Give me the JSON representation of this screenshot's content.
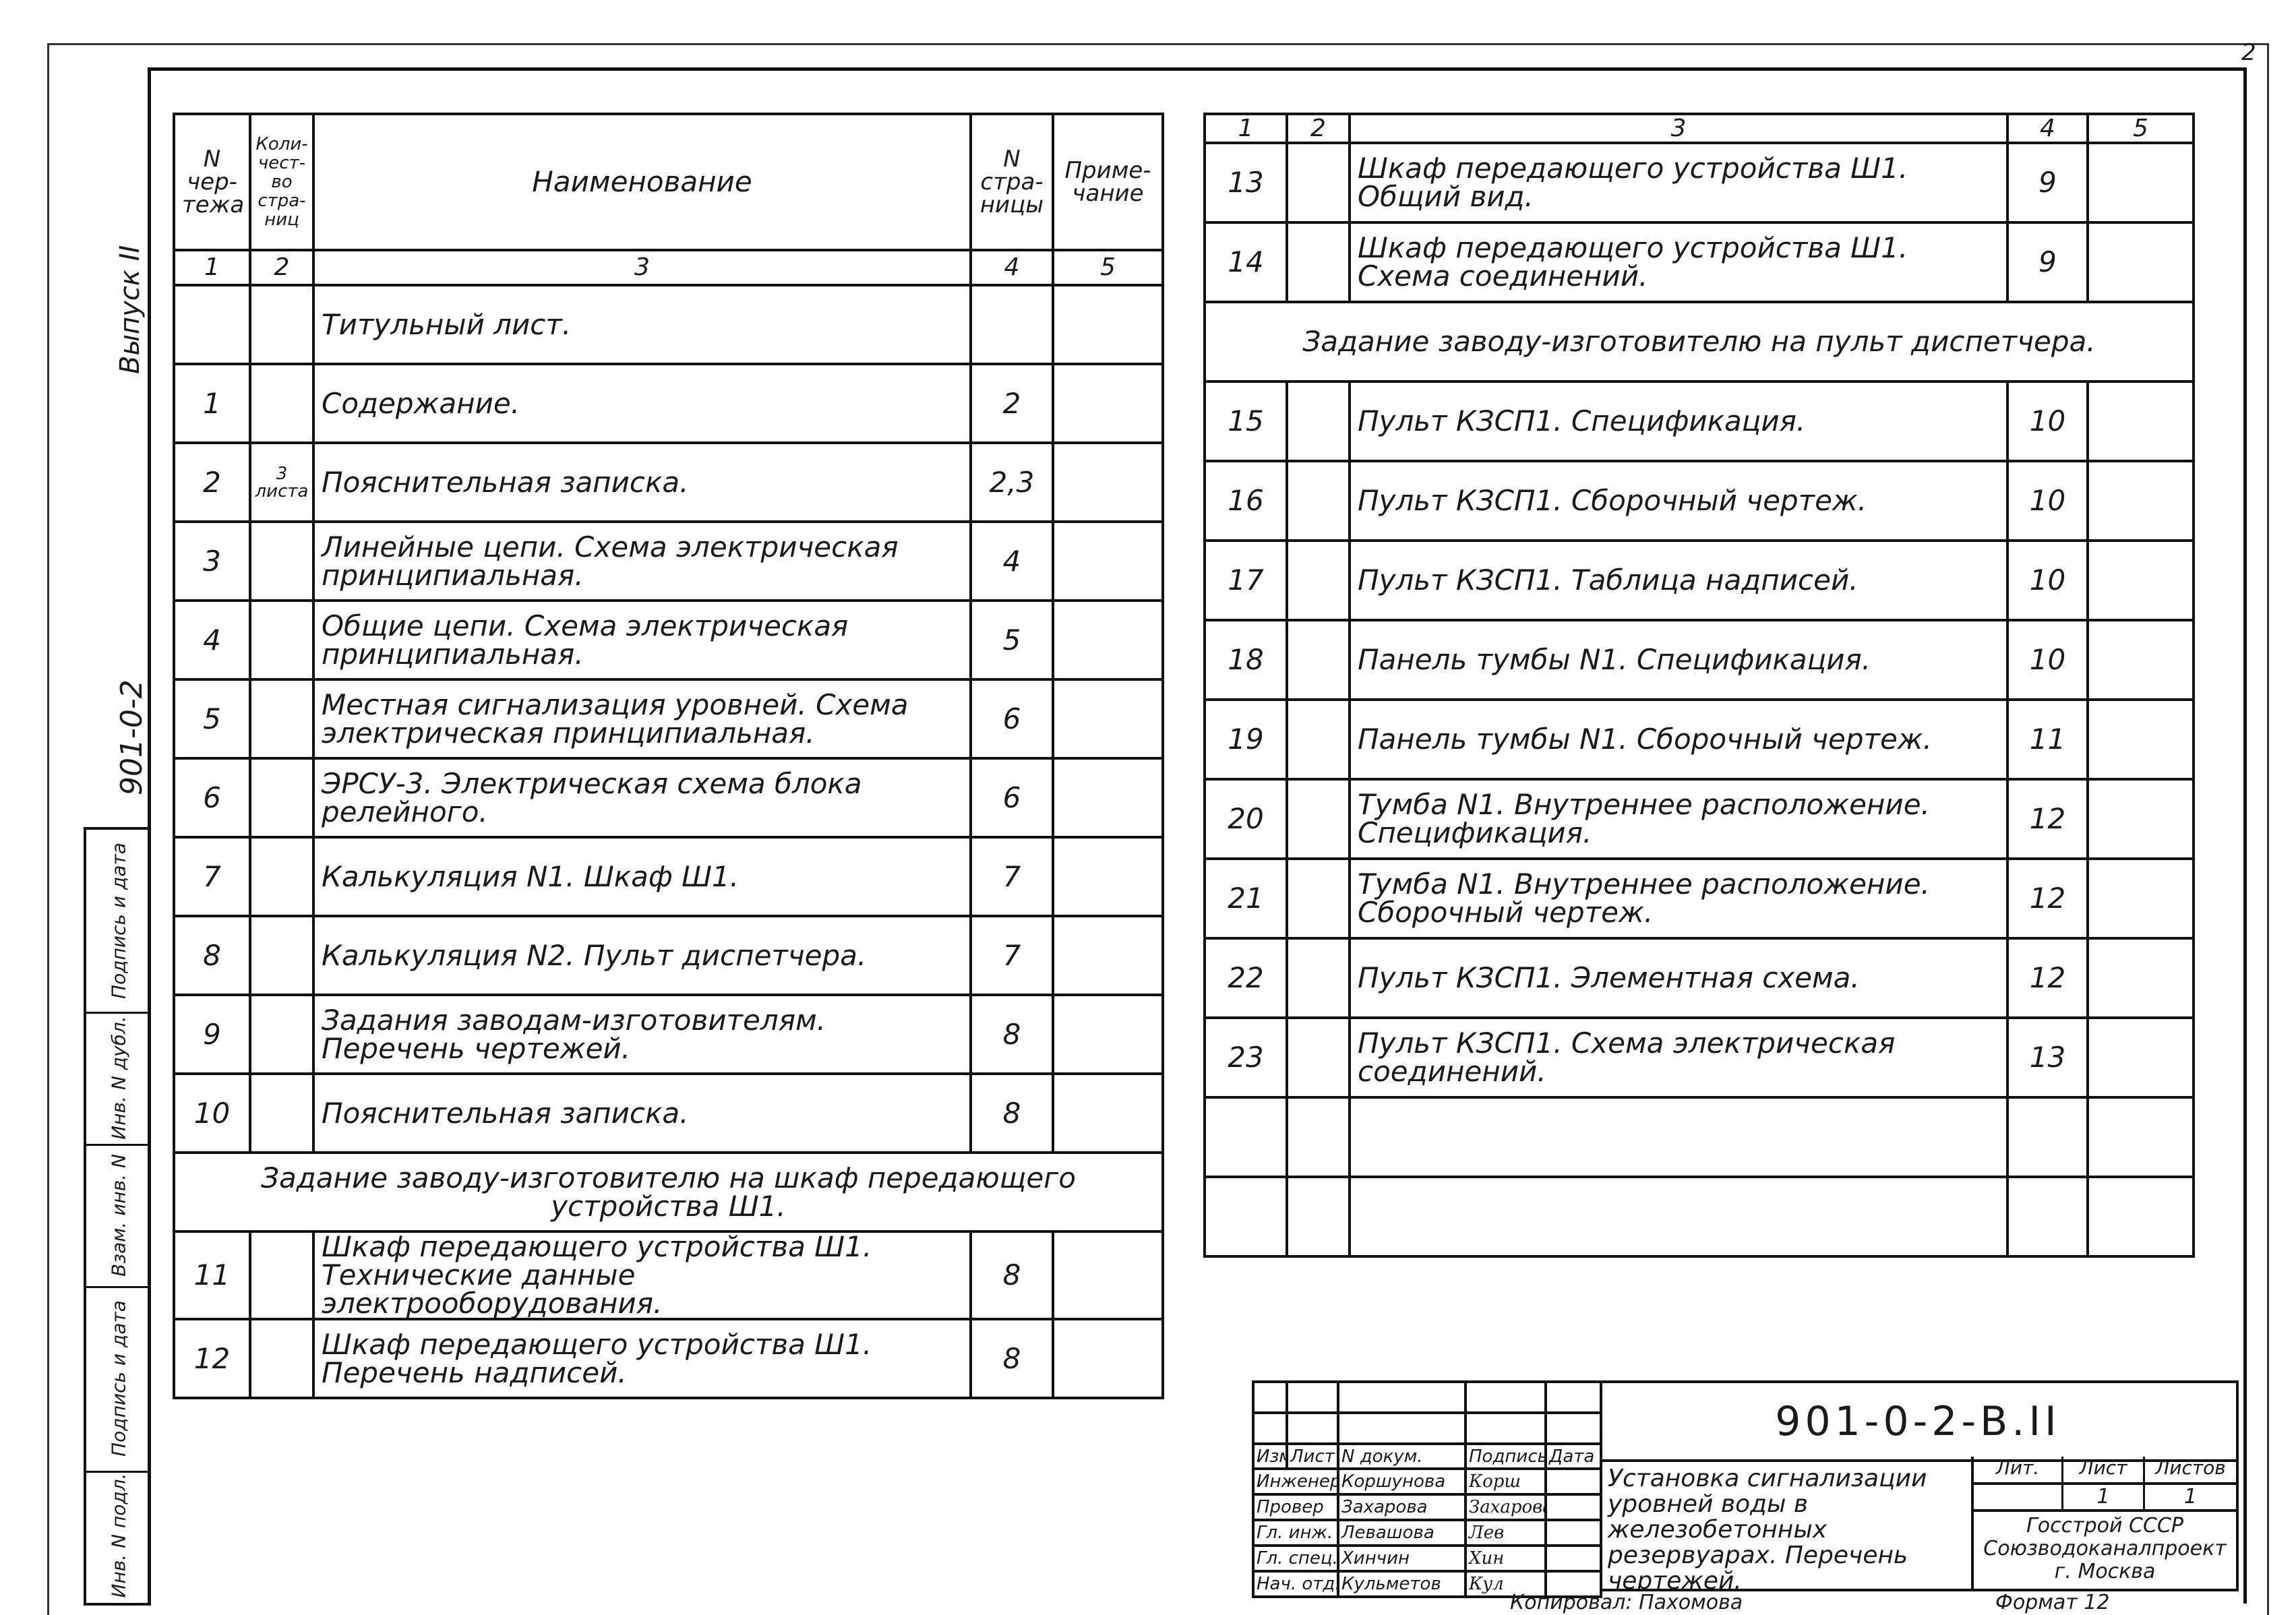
{
  "page_number": "2",
  "side_labels": {
    "issue": "Выпуск II",
    "code": "901-0-2"
  },
  "stamp": [
    "Подпись и дата",
    "Инв. N дубл.",
    "Взам. инв. N",
    "Подпись и дата",
    "Инв. N подл."
  ],
  "left_table": {
    "headers": [
      "N чер-тежа",
      "Коли-чест-во стра-ниц",
      "Наименование",
      "N стра-ницы",
      "Приме-чание"
    ],
    "col_numbers": [
      "1",
      "2",
      "3",
      "4",
      "5"
    ],
    "rows": [
      {
        "n": "",
        "q": "",
        "name": "Титульный лист.",
        "page": "",
        "note": "",
        "section": false
      },
      {
        "n": "1",
        "q": "",
        "name": "Содержание.",
        "page": "2",
        "note": ""
      },
      {
        "n": "2",
        "q": "3 листа",
        "name": "Пояснительная записка.",
        "page": "2,3",
        "note": ""
      },
      {
        "n": "3",
        "q": "",
        "name": "Линейные цепи. Схема электрическая принципиальная.",
        "page": "4",
        "note": ""
      },
      {
        "n": "4",
        "q": "",
        "name": "Общие цепи. Схема электрическая принципиальная.",
        "page": "5",
        "note": ""
      },
      {
        "n": "5",
        "q": "",
        "name": "Местная сигнализация уровней. Схема электрическая принципиальная.",
        "page": "6",
        "note": ""
      },
      {
        "n": "6",
        "q": "",
        "name": "ЭРСУ-3. Электрическая схема блока релейного.",
        "page": "6",
        "note": ""
      },
      {
        "n": "7",
        "q": "",
        "name": "Калькуляция N1. Шкаф Ш1.",
        "page": "7",
        "note": ""
      },
      {
        "n": "8",
        "q": "",
        "name": "Калькуляция N2. Пульт диспетчера.",
        "page": "7",
        "note": ""
      },
      {
        "n": "9",
        "q": "",
        "name": "Задания заводам-изготовителям. Перечень чертежей.",
        "page": "8",
        "note": ""
      },
      {
        "n": "10",
        "q": "",
        "name": "Пояснительная записка.",
        "page": "8",
        "note": ""
      },
      {
        "section": true,
        "name": "Задание заводу-изготовителю на шкаф передающего устройства Ш1."
      },
      {
        "n": "11",
        "q": "",
        "name": "Шкаф передающего устройства Ш1. Технические данные электрооборудования.",
        "page": "8",
        "note": ""
      },
      {
        "n": "12",
        "q": "",
        "name": "Шкаф передающего устройства Ш1. Перечень надписей.",
        "page": "8",
        "note": ""
      }
    ]
  },
  "right_table": {
    "col_numbers": [
      "1",
      "2",
      "3",
      "4",
      "5"
    ],
    "rows": [
      {
        "n": "13",
        "q": "",
        "name": "Шкаф передающего устройства Ш1. Общий вид.",
        "page": "9",
        "note": ""
      },
      {
        "n": "14",
        "q": "",
        "name": "Шкаф передающего устройства Ш1. Схема соединений.",
        "page": "9",
        "note": ""
      },
      {
        "section": true,
        "name": "Задание заводу-изготовителю на пульт диспетчера."
      },
      {
        "n": "15",
        "q": "",
        "name": "Пульт КЗСП1. Спецификация.",
        "page": "10",
        "note": ""
      },
      {
        "n": "16",
        "q": "",
        "name": "Пульт КЗСП1. Сборочный чертеж.",
        "page": "10",
        "note": ""
      },
      {
        "n": "17",
        "q": "",
        "name": "Пульт КЗСП1. Таблица надписей.",
        "page": "10",
        "note": ""
      },
      {
        "n": "18",
        "q": "",
        "name": "Панель тумбы N1. Спецификация.",
        "page": "10",
        "note": ""
      },
      {
        "n": "19",
        "q": "",
        "name": "Панель тумбы N1. Сборочный чертеж.",
        "page": "11",
        "note": ""
      },
      {
        "n": "20",
        "q": "",
        "name": "Тумба N1. Внутреннее расположение. Спецификация.",
        "page": "12",
        "note": ""
      },
      {
        "n": "21",
        "q": "",
        "name": "Тумба N1. Внутреннее расположение. Сборочный чертеж.",
        "page": "12",
        "note": ""
      },
      {
        "n": "22",
        "q": "",
        "name": "Пульт КЗСП1. Элементная схема.",
        "page": "12",
        "note": ""
      },
      {
        "n": "23",
        "q": "",
        "name": "Пульт КЗСП1. Схема электрическая соединений.",
        "page": "13",
        "note": ""
      },
      {
        "n": "",
        "q": "",
        "name": "",
        "page": "",
        "note": ""
      },
      {
        "n": "",
        "q": "",
        "name": "",
        "page": "",
        "note": ""
      }
    ]
  },
  "title_block": {
    "code": "901-0-2-В.II",
    "headers": [
      "Изм.",
      "Лист",
      "N докум.",
      "Подпись",
      "Дата"
    ],
    "people": [
      {
        "role": "Инженер",
        "name": "Коршунова",
        "sign": "Корш"
      },
      {
        "role": "Провер",
        "name": "Захарова",
        "sign": "Захарова"
      },
      {
        "role": "Гл. инж. пр.",
        "name": "Левашова",
        "sign": "Лев"
      },
      {
        "role": "Гл. спец.",
        "name": "Хинчин",
        "sign": "Хин"
      },
      {
        "role": "Нач. отд.",
        "name": "Кульметов",
        "sign": "Кул"
      }
    ],
    "title": "Установка сигнализации уровней воды в железобетонных резервуарах. Перечень чертежей.",
    "lit_label": "Лит.",
    "sheet_label": "Лист",
    "sheets_label": "Листов",
    "sheet": "1",
    "sheets": "1",
    "org": [
      "Госстрой СССР",
      "Союзводоканалпроект",
      "г. Москва"
    ]
  },
  "footer": {
    "copied": "Копировал: Пахомова",
    "format": "Формат 12"
  }
}
